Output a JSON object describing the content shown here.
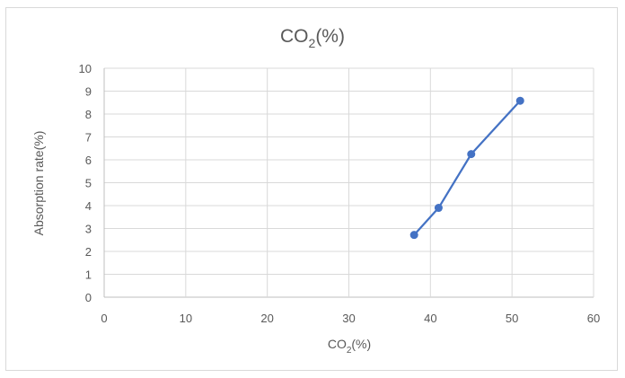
{
  "chart_data": {
    "type": "scatter",
    "title": {
      "main": "CO",
      "sub": "2",
      "rest": "(%)"
    },
    "xlabel": {
      "main": "CO",
      "sub": "2",
      "rest": "(%)"
    },
    "ylabel": "Absorption rate(%)",
    "xlim": [
      0,
      60
    ],
    "ylim": [
      0,
      10
    ],
    "x_ticks": [
      0,
      10,
      20,
      30,
      40,
      50,
      60
    ],
    "y_ticks": [
      0,
      1,
      2,
      3,
      4,
      5,
      6,
      7,
      8,
      9,
      10
    ],
    "grid": true,
    "legend": "none",
    "lines": true,
    "series": [
      {
        "color": "#4472c4",
        "points": [
          {
            "x": 38,
            "y": 2.72
          },
          {
            "x": 41,
            "y": 3.9
          },
          {
            "x": 45,
            "y": 6.25
          },
          {
            "x": 51,
            "y": 8.58
          }
        ]
      }
    ]
  }
}
